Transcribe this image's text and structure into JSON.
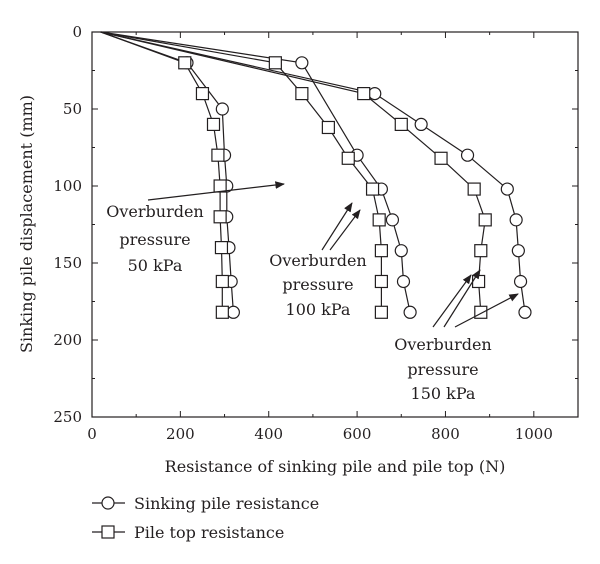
{
  "chart_data": {
    "type": "line",
    "title": "",
    "xlabel": "Resistance of sinking pile and pile top (N)",
    "ylabel": "Sinking pile displacement (mm)",
    "xlim": [
      0,
      1100
    ],
    "ylim": [
      0,
      250
    ],
    "y_inverted": true,
    "x_ticks": [
      0,
      200,
      400,
      600,
      800,
      1000
    ],
    "y_ticks": [
      0,
      50,
      100,
      150,
      200,
      250
    ],
    "grid": false,
    "legend_position": "bottom-left",
    "series": [
      {
        "name": "Sinking pile resistance",
        "group": "50kPa",
        "marker": "circle",
        "x": [
          20,
          215,
          295,
          300,
          305,
          305,
          310,
          315,
          320
        ],
        "y": [
          0,
          20,
          50,
          80,
          100,
          120,
          140,
          162,
          182
        ]
      },
      {
        "name": "Pile top resistance",
        "group": "50kPa",
        "marker": "square",
        "x": [
          20,
          210,
          250,
          275,
          285,
          290,
          290,
          293,
          295,
          295
        ],
        "y": [
          0,
          20,
          40,
          60,
          80,
          100,
          120,
          140,
          162,
          182
        ]
      },
      {
        "name": "Sinking pile resistance",
        "group": "100kPa",
        "marker": "circle",
        "x": [
          20,
          475,
          600,
          655,
          680,
          700,
          705,
          720
        ],
        "y": [
          0,
          20,
          80,
          102,
          122,
          142,
          162,
          182
        ]
      },
      {
        "name": "Pile top resistance",
        "group": "100kPa",
        "marker": "square",
        "x": [
          20,
          415,
          475,
          535,
          580,
          635,
          650,
          655,
          655,
          655
        ],
        "y": [
          0,
          20,
          40,
          62,
          82,
          102,
          122,
          142,
          162,
          182
        ]
      },
      {
        "name": "Sinking pile resistance",
        "group": "150kPa",
        "marker": "circle",
        "x": [
          20,
          640,
          745,
          850,
          940,
          960,
          965,
          970,
          980
        ],
        "y": [
          0,
          40,
          60,
          80,
          102,
          122,
          142,
          162,
          182
        ]
      },
      {
        "name": "Pile top resistance",
        "group": "150kPa",
        "marker": "square",
        "x": [
          20,
          615,
          700,
          790,
          865,
          890,
          880,
          875,
          880
        ],
        "y": [
          0,
          40,
          60,
          82,
          102,
          122,
          142,
          162,
          182
        ]
      }
    ],
    "annotations": [
      {
        "lines": [
          "Overburden",
          "pressure",
          "50 kPa"
        ]
      },
      {
        "lines": [
          "Overburden",
          "pressure",
          "100 kPa"
        ]
      },
      {
        "lines": [
          "Overburden",
          "pressure",
          "150 kPa"
        ]
      }
    ],
    "legend": [
      {
        "label": "Sinking pile resistance",
        "marker": "circle"
      },
      {
        "label": "Pile top resistance",
        "marker": "square"
      }
    ]
  }
}
